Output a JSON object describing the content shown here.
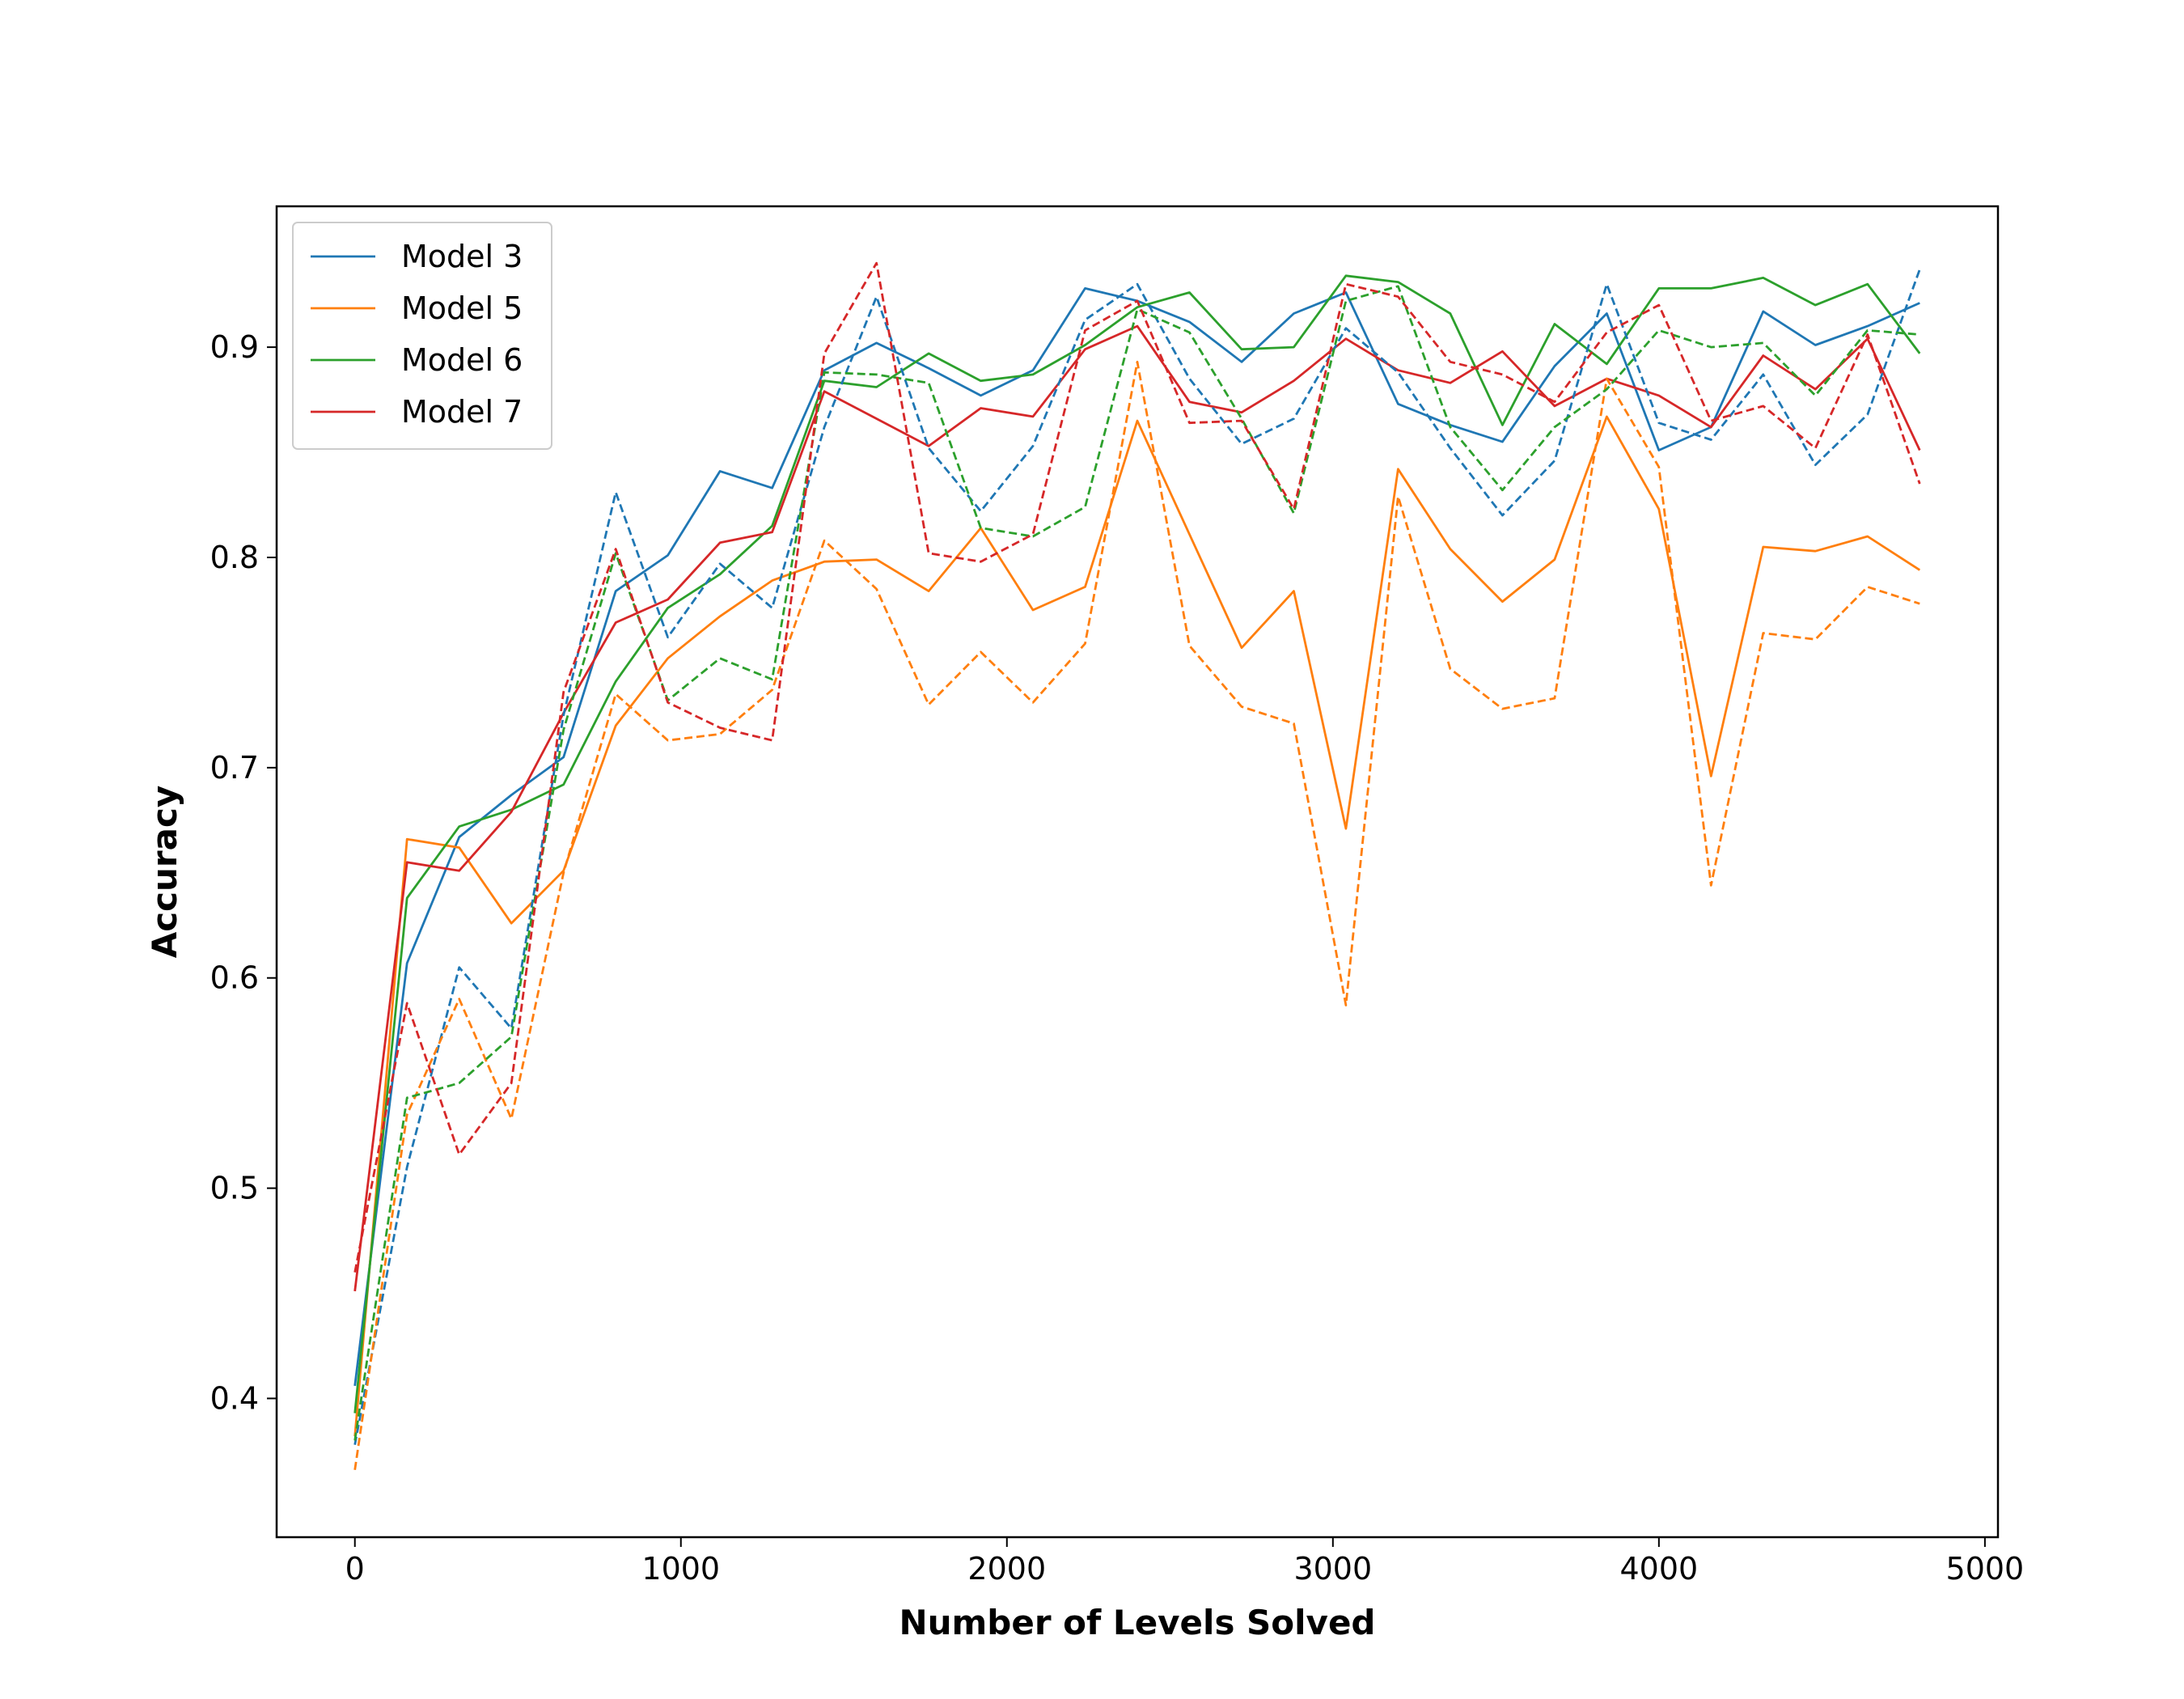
{
  "chart_data": {
    "type": "line",
    "title": "",
    "xlabel": "Number of Levels Solved",
    "ylabel": "Accuracy",
    "xlim": [
      -240,
      5040
    ],
    "ylim": [
      0.334,
      0.967
    ],
    "xticks": [
      0,
      1000,
      2000,
      3000,
      4000,
      5000
    ],
    "yticks": [
      0.4,
      0.5,
      0.6,
      0.7,
      0.8,
      0.9
    ],
    "grid": false,
    "legend": "upper left",
    "x": [
      0,
      160,
      320,
      480,
      640,
      800,
      960,
      1120,
      1280,
      1440,
      1600,
      1760,
      1920,
      2080,
      2240,
      2400,
      2560,
      2720,
      2880,
      3040,
      3200,
      3360,
      3520,
      3680,
      3840,
      4000,
      4160,
      4320,
      4480,
      4640,
      4800
    ],
    "series": [
      {
        "name": "Model 3",
        "color": "#1f77b4",
        "style": "solid",
        "values": [
          0.406,
          0.607,
          0.667,
          0.687,
          0.705,
          0.784,
          0.801,
          0.841,
          0.833,
          0.889,
          0.902,
          0.89,
          0.877,
          0.889,
          0.928,
          0.922,
          0.912,
          0.893,
          0.916,
          0.926,
          0.873,
          0.863,
          0.855,
          0.891,
          0.916,
          0.851,
          0.862,
          0.917,
          0.901,
          0.91,
          0.921
        ]
      },
      {
        "name": "Model 5",
        "color": "#ff7f0e",
        "style": "solid",
        "values": [
          0.382,
          0.666,
          0.662,
          0.626,
          0.651,
          0.72,
          0.752,
          0.772,
          0.789,
          0.798,
          0.799,
          0.784,
          0.814,
          0.775,
          0.786,
          0.865,
          0.811,
          0.757,
          0.784,
          0.671,
          0.842,
          0.804,
          0.779,
          0.799,
          0.867,
          0.823,
          0.696,
          0.805,
          0.803,
          0.81,
          0.794
        ]
      },
      {
        "name": "Model 6",
        "color": "#2ca02c",
        "style": "solid",
        "values": [
          0.393,
          0.638,
          0.672,
          0.68,
          0.692,
          0.741,
          0.776,
          0.792,
          0.815,
          0.884,
          0.881,
          0.897,
          0.884,
          0.887,
          0.901,
          0.919,
          0.926,
          0.899,
          0.9,
          0.934,
          0.931,
          0.916,
          0.863,
          0.911,
          0.892,
          0.928,
          0.928,
          0.933,
          0.92,
          0.93,
          0.897
        ]
      },
      {
        "name": "Model 7",
        "color": "#d62728",
        "style": "solid",
        "values": [
          0.451,
          0.655,
          0.651,
          0.679,
          0.726,
          0.769,
          0.78,
          0.807,
          0.812,
          0.879,
          0.866,
          0.853,
          0.871,
          0.867,
          0.899,
          0.91,
          0.874,
          0.869,
          0.884,
          0.904,
          0.889,
          0.883,
          0.898,
          0.872,
          0.885,
          0.877,
          0.862,
          0.896,
          0.88,
          0.904,
          0.851
        ]
      },
      {
        "color": "#1f77b4",
        "style": "dashed",
        "values": [
          0.378,
          0.51,
          0.605,
          0.576,
          0.725,
          0.831,
          0.762,
          0.797,
          0.776,
          0.862,
          0.924,
          0.852,
          0.822,
          0.853,
          0.913,
          0.93,
          0.885,
          0.854,
          0.866,
          0.909,
          0.888,
          0.852,
          0.82,
          0.846,
          0.93,
          0.864,
          0.856,
          0.887,
          0.844,
          0.868,
          0.937
        ]
      },
      {
        "color": "#ff7f0e",
        "style": "dashed",
        "values": [
          0.366,
          0.535,
          0.59,
          0.533,
          0.65,
          0.735,
          0.713,
          0.716,
          0.737,
          0.808,
          0.785,
          0.73,
          0.755,
          0.731,
          0.759,
          0.893,
          0.758,
          0.729,
          0.721,
          0.587,
          0.829,
          0.747,
          0.728,
          0.733,
          0.885,
          0.843,
          0.644,
          0.764,
          0.761,
          0.786,
          0.778
        ]
      },
      {
        "color": "#2ca02c",
        "style": "dashed",
        "values": [
          0.38,
          0.543,
          0.55,
          0.572,
          0.718,
          0.802,
          0.732,
          0.752,
          0.742,
          0.888,
          0.887,
          0.883,
          0.814,
          0.81,
          0.824,
          0.918,
          0.907,
          0.866,
          0.821,
          0.922,
          0.929,
          0.862,
          0.832,
          0.862,
          0.88,
          0.908,
          0.9,
          0.902,
          0.877,
          0.908,
          0.906
        ]
      },
      {
        "color": "#d62728",
        "style": "dashed",
        "values": [
          0.46,
          0.588,
          0.516,
          0.55,
          0.736,
          0.804,
          0.731,
          0.719,
          0.713,
          0.897,
          0.94,
          0.802,
          0.798,
          0.811,
          0.908,
          0.922,
          0.864,
          0.865,
          0.823,
          0.93,
          0.924,
          0.893,
          0.887,
          0.874,
          0.907,
          0.92,
          0.865,
          0.872,
          0.852,
          0.906,
          0.835
        ]
      }
    ]
  }
}
